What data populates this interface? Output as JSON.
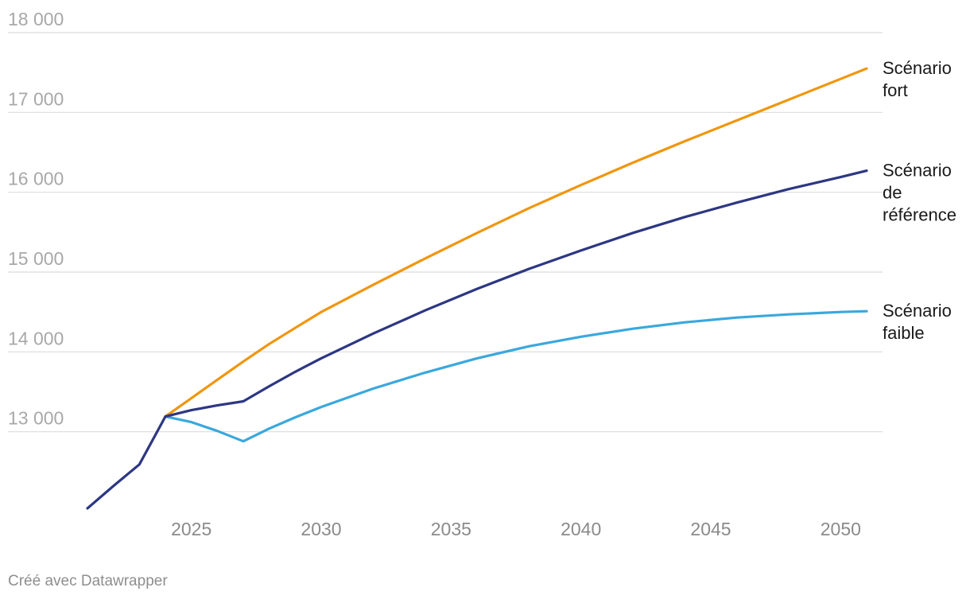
{
  "chart_data": {
    "type": "line",
    "title": "",
    "xlabel": "",
    "ylabel": "",
    "xlim": [
      2021,
      2051
    ],
    "ylim": [
      12000,
      18000
    ],
    "x_ticks": [
      2025,
      2030,
      2035,
      2040,
      2045,
      2050
    ],
    "y_ticks": [
      13000,
      14000,
      15000,
      16000,
      17000,
      18000
    ],
    "y_tick_labels": [
      "13 000",
      "14 000",
      "15 000",
      "16 000",
      "17 000",
      "18 000"
    ],
    "grid": true,
    "legend": "direct labels at line ends, right",
    "historical": {
      "color": "#2d3782",
      "x": [
        2021,
        2022,
        2023,
        2024
      ],
      "values": [
        12040,
        12320,
        12590,
        13190
      ]
    },
    "series": [
      {
        "name_lines": [
          "Scénario",
          "fort"
        ],
        "color": "#f0960e",
        "x": [
          2024,
          2025,
          2026,
          2027,
          2028,
          2029,
          2030,
          2032,
          2034,
          2036,
          2038,
          2040,
          2042,
          2044,
          2046,
          2048,
          2050,
          2051
        ],
        "values": [
          13190,
          13420,
          13650,
          13880,
          14100,
          14300,
          14500,
          14840,
          15170,
          15490,
          15800,
          16090,
          16370,
          16640,
          16900,
          17160,
          17420,
          17550
        ]
      },
      {
        "name_lines": [
          "Scénario",
          "de",
          "référence"
        ],
        "color": "#2d3782",
        "x": [
          2024,
          2025,
          2026,
          2027,
          2028,
          2029,
          2030,
          2032,
          2034,
          2036,
          2038,
          2040,
          2042,
          2044,
          2046,
          2048,
          2050,
          2051
        ],
        "values": [
          13190,
          13270,
          13330,
          13380,
          13570,
          13750,
          13920,
          14230,
          14520,
          14790,
          15040,
          15270,
          15490,
          15690,
          15870,
          16040,
          16190,
          16270
        ]
      },
      {
        "name_lines": [
          "Scénario",
          "faible"
        ],
        "color": "#3aa8dd",
        "x": [
          2024,
          2025,
          2026,
          2027,
          2028,
          2029,
          2030,
          2032,
          2034,
          2036,
          2038,
          2040,
          2042,
          2044,
          2046,
          2048,
          2050,
          2051
        ],
        "values": [
          13190,
          13120,
          13010,
          12880,
          13040,
          13180,
          13310,
          13540,
          13740,
          13920,
          14070,
          14190,
          14290,
          14370,
          14430,
          14470,
          14500,
          14510
        ]
      }
    ]
  },
  "footer": {
    "credit": "Créé avec Datawrapper"
  }
}
